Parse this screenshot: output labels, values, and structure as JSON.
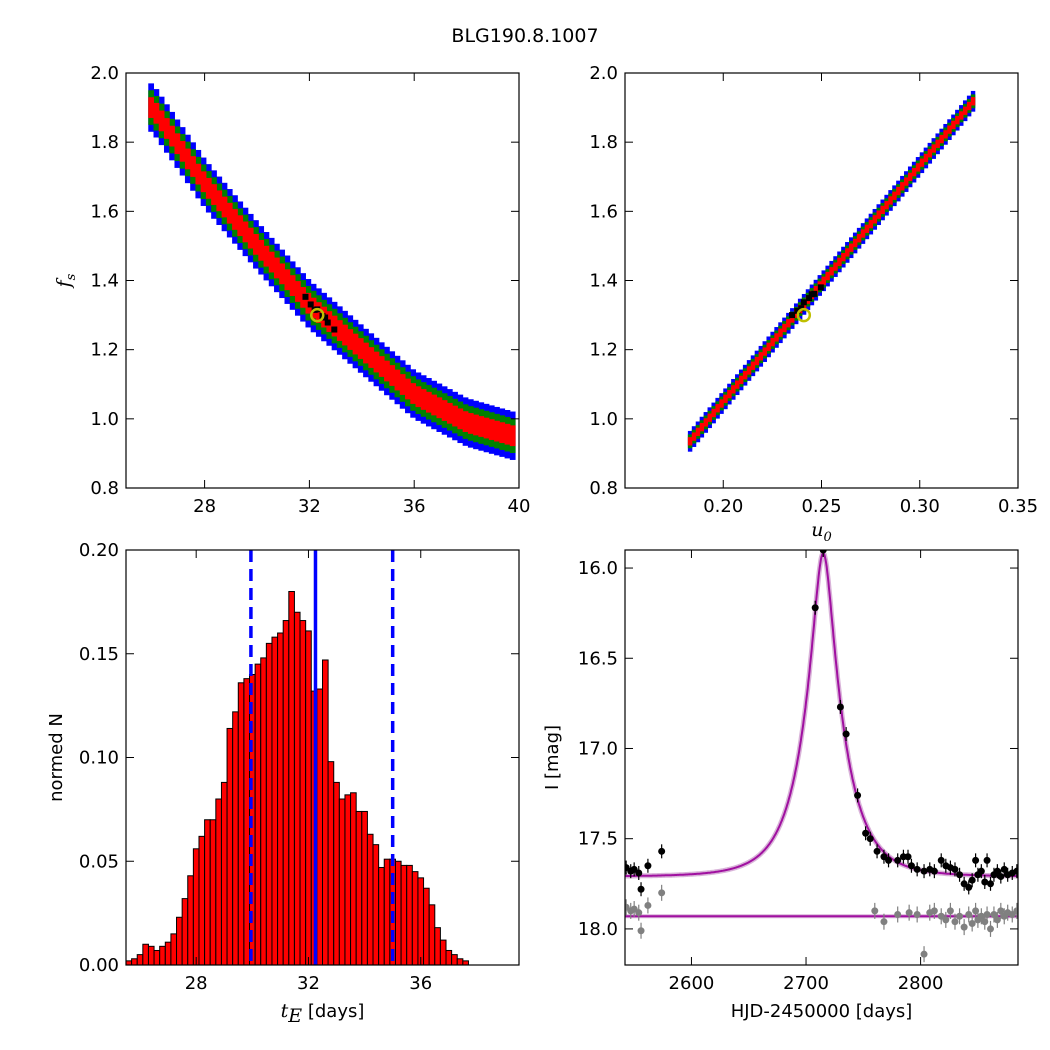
{
  "figure": {
    "title": "BLG190.8.1007"
  },
  "colors": {
    "sigma3": "#0000ff",
    "sigma2": "#008000",
    "sigma1": "#ff0000",
    "best": "#000000",
    "marker": "#bfbf00",
    "model": "#a010a0",
    "data_main": "#000000",
    "data_resid": "#808080",
    "vline": "#0000ff"
  },
  "chart_data": [
    {
      "id": "tE-fs",
      "type": "heatmap",
      "xlabel": "",
      "ylabel": "f_s",
      "ylabel_main": "f",
      "ylabel_sub": "s",
      "xlim": [
        25,
        40
      ],
      "ylim": [
        0.8,
        2.0
      ],
      "xticks": [
        "28",
        "32",
        "36",
        "40"
      ],
      "xtick_values": [
        28,
        32,
        36,
        40
      ],
      "yticks": [
        "0.8",
        "1.0",
        "1.2",
        "1.4",
        "1.6",
        "1.8",
        "2.0"
      ],
      "ytick_values": [
        0.8,
        1.0,
        1.2,
        1.4,
        1.6,
        1.8,
        2.0
      ],
      "band": {
        "x_start": 25.95,
        "x_end": 39.8,
        "step": 0.2,
        "center": [
          [
            26.0,
            1.9
          ],
          [
            28.0,
            1.68
          ],
          [
            30.0,
            1.5
          ],
          [
            32.0,
            1.33
          ],
          [
            34.0,
            1.2
          ],
          [
            36.0,
            1.07
          ],
          [
            38.0,
            0.99
          ],
          [
            39.8,
            0.95
          ]
        ],
        "half_width_3sigma": 0.07,
        "half_width_2sigma": 0.05,
        "half_width_1sigma": 0.03
      },
      "best_fit": {
        "x": 32.3,
        "y": 1.3
      }
    },
    {
      "id": "u0-fs",
      "type": "heatmap",
      "xlabel": "u_0",
      "xlabel_main": "u",
      "xlabel_sub": "0",
      "ylabel": "",
      "xlim": [
        0.15,
        0.35
      ],
      "ylim": [
        0.8,
        2.0
      ],
      "xticks": [
        "0.20",
        "0.25",
        "0.30",
        "0.35"
      ],
      "xtick_values": [
        0.2,
        0.25,
        0.3,
        0.35
      ],
      "yticks": [
        "0.8",
        "1.0",
        "1.2",
        "1.4",
        "1.6",
        "1.8",
        "2.0"
      ],
      "ytick_values": [
        0.8,
        1.0,
        1.2,
        1.4,
        1.6,
        1.8,
        2.0
      ],
      "band": {
        "x_start": 0.183,
        "x_end": 0.328,
        "step": 0.002,
        "center": [
          [
            0.183,
            0.935
          ],
          [
            0.328,
            1.925
          ]
        ],
        "half_width_3sigma": 0.03,
        "half_width_2sigma": 0.02,
        "half_width_1sigma": 0.012
      },
      "best_fit": {
        "x": 0.241,
        "y": 1.3
      }
    },
    {
      "id": "tE-hist",
      "type": "bar",
      "xlabel_main": "t",
      "xlabel_sub": "E",
      "xlabel_rest": " [days]",
      "ylabel": "normed N",
      "xlim": [
        25.5,
        39.5
      ],
      "ylim": [
        0.0,
        0.2
      ],
      "xticks": [
        "28",
        "32",
        "36"
      ],
      "xtick_values": [
        28,
        32,
        36
      ],
      "yticks": [
        "0.00",
        "0.05",
        "0.10",
        "0.15",
        "0.20"
      ],
      "ytick_values": [
        0.0,
        0.05,
        0.1,
        0.15,
        0.2
      ],
      "bin_start": 25.5,
      "bin_width": 0.2,
      "values": [
        0.002,
        0.003,
        0.005,
        0.01,
        0.009,
        0.007,
        0.009,
        0.011,
        0.015,
        0.023,
        0.032,
        0.043,
        0.056,
        0.062,
        0.07,
        0.07,
        0.08,
        0.088,
        0.114,
        0.122,
        0.136,
        0.138,
        0.14,
        0.145,
        0.148,
        0.155,
        0.158,
        0.16,
        0.166,
        0.18,
        0.17,
        0.166,
        0.161,
        0.132,
        0.133,
        0.147,
        0.098,
        0.088,
        0.08,
        0.082,
        0.083,
        0.074,
        0.074,
        0.063,
        0.058,
        0.047,
        0.051,
        0.051,
        0.05,
        0.048,
        0.048,
        0.045,
        0.042,
        0.037,
        0.029,
        0.018,
        0.012,
        0.007,
        0.005,
        0.003,
        0.002
      ],
      "vlines": [
        {
          "x": 32.25,
          "style": "solid"
        },
        {
          "x": 29.95,
          "style": "dashed"
        },
        {
          "x": 35.0,
          "style": "dashed"
        }
      ]
    },
    {
      "id": "lightcurve",
      "type": "line",
      "xlabel": "HJD-2450000 [days]",
      "ylabel": "I [mag]",
      "xlim": [
        2542,
        2885
      ],
      "ylim": [
        18.2,
        15.9
      ],
      "xticks": [
        "2600",
        "2700",
        "2800"
      ],
      "xtick_values": [
        2600,
        2700,
        2800
      ],
      "yticks": [
        "16.0",
        "16.5",
        "17.0",
        "17.5",
        "18.0"
      ],
      "ytick_values": [
        16.0,
        16.5,
        17.0,
        17.5,
        18.0
      ],
      "model": {
        "t0": 2715,
        "u0": 0.241,
        "tE": 32.3,
        "fs": 1.3,
        "baseline": 17.71
      },
      "resid_baseline": 17.93,
      "data_main": [
        [
          2543,
          17.66
        ],
        [
          2547,
          17.68
        ],
        [
          2550,
          17.67
        ],
        [
          2554,
          17.69
        ],
        [
          2556,
          17.78
        ],
        [
          2562,
          17.65
        ],
        [
          2574,
          17.57
        ],
        [
          2708,
          16.22
        ],
        [
          2715,
          15.9
        ],
        [
          2730,
          16.77
        ],
        [
          2735,
          16.92
        ],
        [
          2745,
          17.26
        ],
        [
          2752,
          17.47
        ],
        [
          2756,
          17.5
        ],
        [
          2762,
          17.57
        ],
        [
          2768,
          17.6
        ],
        [
          2772,
          17.62
        ],
        [
          2780,
          17.62
        ],
        [
          2785,
          17.6
        ],
        [
          2789,
          17.6
        ],
        [
          2792,
          17.65
        ],
        [
          2797,
          17.67
        ],
        [
          2803,
          17.68
        ],
        [
          2808,
          17.67
        ],
        [
          2812,
          17.68
        ],
        [
          2818,
          17.62
        ],
        [
          2822,
          17.65
        ],
        [
          2826,
          17.66
        ],
        [
          2830,
          17.67
        ],
        [
          2834,
          17.7
        ],
        [
          2838,
          17.75
        ],
        [
          2842,
          17.77
        ],
        [
          2845,
          17.73
        ],
        [
          2848,
          17.62
        ],
        [
          2850,
          17.7
        ],
        [
          2853,
          17.68
        ],
        [
          2856,
          17.74
        ],
        [
          2858,
          17.62
        ],
        [
          2861,
          17.75
        ],
        [
          2864,
          17.7
        ],
        [
          2867,
          17.68
        ],
        [
          2870,
          17.71
        ],
        [
          2873,
          17.67
        ],
        [
          2876,
          17.7
        ],
        [
          2880,
          17.69
        ],
        [
          2884,
          17.68
        ]
      ],
      "data_resid": [
        [
          2543,
          17.88
        ],
        [
          2547,
          17.9
        ],
        [
          2550,
          17.89
        ],
        [
          2554,
          17.91
        ],
        [
          2556,
          18.01
        ],
        [
          2562,
          17.87
        ],
        [
          2574,
          17.8
        ],
        [
          2760,
          17.9
        ],
        [
          2768,
          17.96
        ],
        [
          2780,
          17.92
        ],
        [
          2790,
          17.91
        ],
        [
          2797,
          17.92
        ],
        [
          2803,
          18.14
        ],
        [
          2808,
          17.91
        ],
        [
          2812,
          17.9
        ],
        [
          2818,
          17.93
        ],
        [
          2822,
          17.95
        ],
        [
          2826,
          17.9
        ],
        [
          2830,
          17.96
        ],
        [
          2834,
          17.93
        ],
        [
          2838,
          17.99
        ],
        [
          2842,
          17.92
        ],
        [
          2845,
          17.97
        ],
        [
          2848,
          17.9
        ],
        [
          2850,
          17.95
        ],
        [
          2853,
          17.93
        ],
        [
          2856,
          17.96
        ],
        [
          2858,
          17.92
        ],
        [
          2861,
          18.0
        ],
        [
          2864,
          17.92
        ],
        [
          2867,
          17.95
        ],
        [
          2870,
          17.9
        ],
        [
          2873,
          17.93
        ],
        [
          2876,
          17.91
        ],
        [
          2880,
          17.92
        ],
        [
          2884,
          17.9
        ]
      ]
    }
  ]
}
